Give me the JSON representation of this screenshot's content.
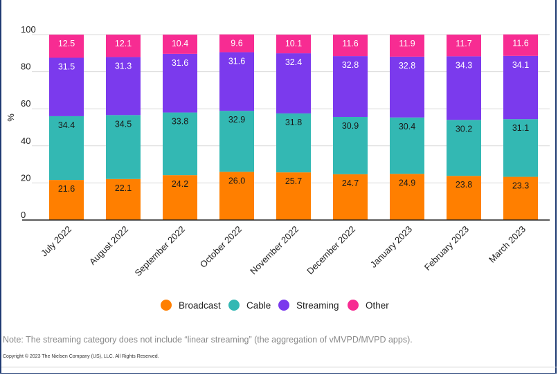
{
  "chart_data": {
    "type": "bar",
    "stacked": true,
    "ylabel": "%",
    "ylim": [
      0,
      100
    ],
    "yticks": [
      0,
      20,
      40,
      60,
      80,
      100
    ],
    "grid": true,
    "legend_position": "bottom",
    "categories": [
      "July 2022",
      "August 2022",
      "September 2022",
      "October 2022",
      "November 2022",
      "December 2022",
      "January 2023",
      "February 2023",
      "March 2023"
    ],
    "series": [
      {
        "name": "Broadcast",
        "color": "#ff7f00",
        "label_color": "#1a1a1a",
        "values": [
          21.6,
          22.1,
          24.2,
          26.0,
          25.7,
          24.7,
          24.9,
          23.8,
          23.3
        ],
        "labels": [
          "21.6",
          "22.1",
          "24.2",
          "26.0",
          "25.7",
          "24.7",
          "24.9",
          "23.8",
          "23.3"
        ]
      },
      {
        "name": "Cable",
        "color": "#33b8b3",
        "label_color": "#1a1a1a",
        "values": [
          34.4,
          34.5,
          33.8,
          32.9,
          31.8,
          30.9,
          30.4,
          30.2,
          31.1
        ],
        "labels": [
          "34.4",
          "34.5",
          "33.8",
          "32.9",
          "31.8",
          "30.9",
          "30.4",
          "30.2",
          "31.1"
        ]
      },
      {
        "name": "Streaming",
        "color": "#7b3aed",
        "label_color": "#ffffff",
        "values": [
          31.5,
          31.3,
          31.6,
          31.6,
          32.4,
          32.8,
          32.8,
          34.3,
          34.1
        ],
        "labels": [
          "31.5",
          "31.3",
          "31.6",
          "31.6",
          "32.4",
          "32.8",
          "32.8",
          "34.3",
          "34.1"
        ]
      },
      {
        "name": "Other",
        "color": "#f72c92",
        "label_color": "#ffffff",
        "values": [
          12.5,
          12.1,
          10.4,
          9.6,
          10.1,
          11.6,
          11.9,
          11.7,
          11.6
        ],
        "labels": [
          "12.5",
          "12.1",
          "10.4",
          "9.6",
          "10.1",
          "11.6",
          "11.9",
          "11.7",
          "11.6"
        ]
      }
    ]
  },
  "note": "Note: The streaming category does not include “linear streaming” (the aggregation of vMVPD/MVPD apps).",
  "copyright": "Copyright © 2023 The Nielsen Company (US), LLC. All Rights Reserved."
}
